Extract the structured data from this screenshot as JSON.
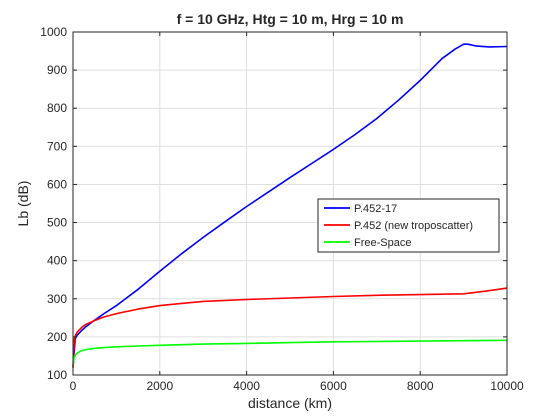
{
  "chart_data": {
    "type": "line",
    "title": "f = 10 GHz, Htg = 10 m, Hrg = 10 m",
    "xlabel": "distance (km)",
    "ylabel": "Lb (dB)",
    "xlim": [
      0,
      10000
    ],
    "ylim": [
      100,
      1000
    ],
    "xticks": [
      0,
      2000,
      4000,
      6000,
      8000,
      10000
    ],
    "yticks": [
      100,
      200,
      300,
      400,
      500,
      600,
      700,
      800,
      900,
      1000
    ],
    "grid": true,
    "legend_position": "right",
    "series": [
      {
        "name": "P.452-17",
        "color": "#0000ff",
        "x": [
          0,
          50,
          100,
          200,
          300,
          500,
          700,
          1000,
          1500,
          2000,
          2500,
          3000,
          3500,
          4000,
          4500,
          5000,
          5500,
          6000,
          6500,
          7000,
          7500,
          8000,
          8500,
          8800,
          9000,
          9100,
          9300,
          9600,
          10000
        ],
        "y": [
          120,
          195,
          205,
          217,
          227,
          244,
          260,
          282,
          325,
          372,
          418,
          461,
          502,
          542,
          580,
          618,
          655,
          692,
          731,
          773,
          821,
          873,
          930,
          955,
          968,
          968,
          963,
          961,
          962
        ]
      },
      {
        "name": "P.452 (new troposcatter)",
        "color": "#ff0000",
        "x": [
          0,
          30,
          60,
          100,
          200,
          300,
          500,
          700,
          1000,
          1500,
          2000,
          2500,
          3000,
          4000,
          5000,
          6000,
          7000,
          8000,
          9000,
          9500,
          10000
        ],
        "y": [
          120,
          195,
          205,
          213,
          225,
          233,
          243,
          252,
          261,
          273,
          282,
          288,
          293,
          298,
          302,
          306,
          309,
          311,
          313,
          320,
          328
        ]
      },
      {
        "name": "Free-Space",
        "color": "#00ff00",
        "x": [
          0,
          20,
          50,
          100,
          200,
          300,
          500,
          700,
          1000,
          1500,
          2000,
          3000,
          4000,
          5000,
          6000,
          7000,
          8000,
          9000,
          10000
        ],
        "y": [
          118,
          144,
          152,
          158,
          164,
          167,
          170,
          172,
          174,
          176,
          178,
          181,
          183,
          185,
          187,
          188,
          189,
          190,
          191
        ]
      }
    ]
  }
}
